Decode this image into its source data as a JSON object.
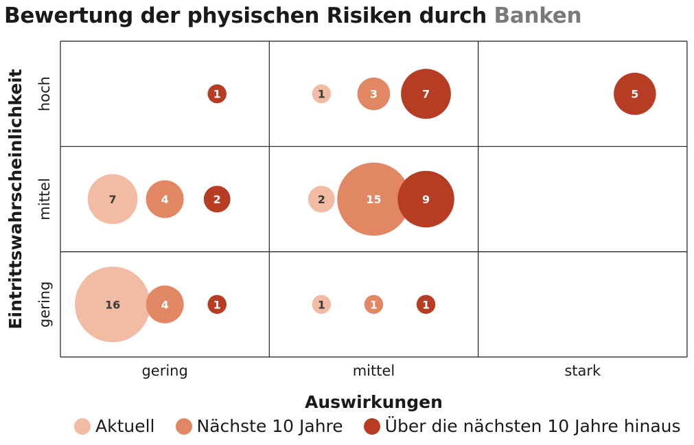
{
  "title": {
    "main": "Bewertung der physischen Risiken durch",
    "accent": "Banken"
  },
  "colors": {
    "aktuell": "#f2bca4",
    "naechste": "#e28763",
    "ueber": "#b73c24",
    "title_accent": "#7a7a7a"
  },
  "chart_data": {
    "type": "bubble-matrix",
    "title": "Bewertung der physischen Risiken durch Banken",
    "xlabel": "Auswirkungen",
    "ylabel": "Eintrittswahrscheinlichkeit",
    "x_categories": [
      "gering",
      "mittel",
      "stark"
    ],
    "y_categories": [
      "gering",
      "mittel",
      "hoch"
    ],
    "series": [
      {
        "name": "Aktuell",
        "points": [
          {
            "x": "gering",
            "y": "gering",
            "value": 16
          },
          {
            "x": "gering",
            "y": "mittel",
            "value": 7
          },
          {
            "x": "mittel",
            "y": "gering",
            "value": 1
          },
          {
            "x": "mittel",
            "y": "mittel",
            "value": 2
          },
          {
            "x": "mittel",
            "y": "hoch",
            "value": 1
          }
        ]
      },
      {
        "name": "Nächste 10 Jahre",
        "points": [
          {
            "x": "gering",
            "y": "gering",
            "value": 4
          },
          {
            "x": "gering",
            "y": "mittel",
            "value": 4
          },
          {
            "x": "mittel",
            "y": "gering",
            "value": 1
          },
          {
            "x": "mittel",
            "y": "mittel",
            "value": 15
          },
          {
            "x": "mittel",
            "y": "hoch",
            "value": 3
          }
        ]
      },
      {
        "name": "Über die nächsten 10 Jahre hinaus",
        "points": [
          {
            "x": "gering",
            "y": "gering",
            "value": 1
          },
          {
            "x": "gering",
            "y": "mittel",
            "value": 2
          },
          {
            "x": "gering",
            "y": "hoch",
            "value": 1
          },
          {
            "x": "mittel",
            "y": "gering",
            "value": 1
          },
          {
            "x": "mittel",
            "y": "mittel",
            "value": 9
          },
          {
            "x": "mittel",
            "y": "hoch",
            "value": 7
          },
          {
            "x": "stark",
            "y": "hoch",
            "value": 5
          }
        ]
      }
    ],
    "legend_position": "bottom"
  }
}
